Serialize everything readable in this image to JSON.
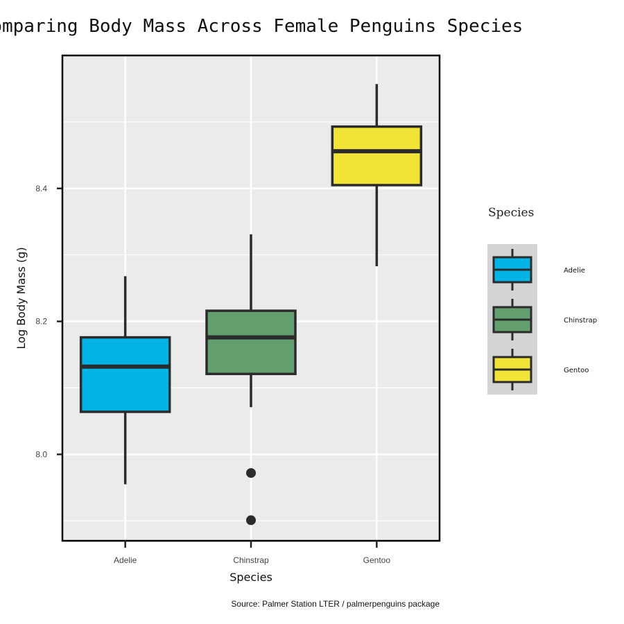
{
  "chart_data": {
    "type": "box",
    "title": "Comparing Body Mass Across Female Penguins Species",
    "xlabel": "Species",
    "ylabel": "Log Body Mass (g)",
    "caption": "Source: Palmer Station LTER / palmerpenguins package",
    "ylim": [
      7.87,
      8.6
    ],
    "yticks": [
      8.0,
      8.2,
      8.4
    ],
    "ytick_labels": [
      "8.0",
      "8.2",
      "8.4"
    ],
    "grid": true,
    "legend": {
      "title": "Species",
      "placement": "right"
    },
    "categories": [
      "Adelie",
      "Chinstrap",
      "Gentoo"
    ],
    "series": [
      {
        "name": "Adelie",
        "color": "#00b5e6",
        "whisker_low": 7.955,
        "q1": 8.064,
        "median": 8.132,
        "q3": 8.176,
        "whisker_high": 8.268,
        "outliers": []
      },
      {
        "name": "Chinstrap",
        "color": "#639e6e",
        "whisker_low": 8.071,
        "q1": 8.121,
        "median": 8.176,
        "q3": 8.216,
        "whisker_high": 8.331,
        "outliers": [
          7.972,
          7.901
        ]
      },
      {
        "name": "Gentoo",
        "color": "#f2e436",
        "whisker_low": 8.283,
        "q1": 8.405,
        "median": 8.456,
        "q3": 8.493,
        "whisker_high": 8.557,
        "outliers": []
      }
    ]
  }
}
